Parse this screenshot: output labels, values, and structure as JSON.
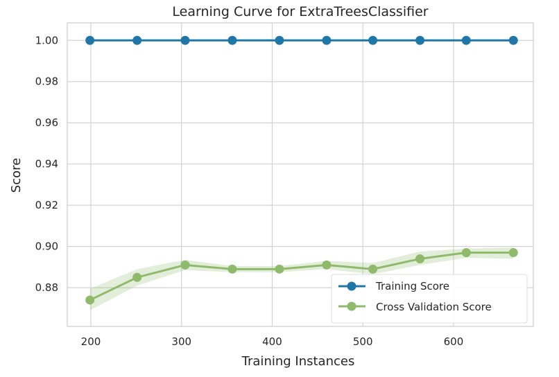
{
  "chart_data": {
    "type": "line",
    "title": "Learning Curve for ExtraTreesClassifier",
    "xlabel": "Training Instances",
    "ylabel": "Score",
    "xlim": [
      174,
      688
    ],
    "ylim": [
      0.8612,
      1.0085
    ],
    "x_ticks": [
      200,
      300,
      400,
      500,
      600
    ],
    "y_ticks": [
      0.88,
      0.9,
      0.92,
      0.94,
      0.96,
      0.98,
      1.0
    ],
    "grid": true,
    "legend_position": "lower-right",
    "x": [
      199,
      251,
      304,
      356,
      408,
      460,
      511,
      563,
      614,
      666
    ],
    "series": [
      {
        "name": "Training Score",
        "color": "#1f77a8",
        "values": [
          1.0,
          1.0,
          1.0,
          1.0,
          1.0,
          1.0,
          1.0,
          1.0,
          1.0,
          1.0
        ],
        "band_low": [
          1.0,
          1.0,
          1.0,
          1.0,
          1.0,
          1.0,
          1.0,
          1.0,
          1.0,
          1.0
        ],
        "band_high": [
          1.0,
          1.0,
          1.0,
          1.0,
          1.0,
          1.0,
          1.0,
          1.0,
          1.0,
          1.0
        ]
      },
      {
        "name": "Cross Validation Score",
        "color": "#8fba6c",
        "values": [
          0.874,
          0.885,
          0.891,
          0.889,
          0.889,
          0.891,
          0.889,
          0.894,
          0.897,
          0.897
        ],
        "band_low": [
          0.869,
          0.881,
          0.8885,
          0.8875,
          0.8875,
          0.889,
          0.8865,
          0.891,
          0.8945,
          0.894
        ],
        "band_high": [
          0.8795,
          0.889,
          0.8935,
          0.8905,
          0.8905,
          0.893,
          0.892,
          0.8975,
          0.899,
          0.8995
        ]
      }
    ]
  }
}
